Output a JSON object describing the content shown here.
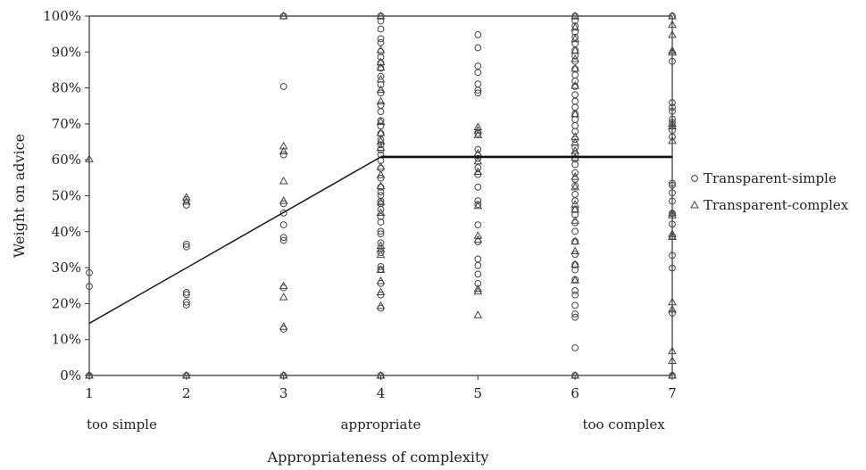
{
  "chart_data": {
    "type": "scatter",
    "title": "",
    "xlabel": "Appropriateness of complexity",
    "ylabel": "Weight on advice",
    "xlim": [
      1,
      7
    ],
    "ylim": [
      0,
      100
    ],
    "x_ticks": [
      "1",
      "2",
      "3",
      "4",
      "5",
      "6",
      "7"
    ],
    "y_ticks": [
      "0%",
      "10%",
      "20%",
      "30%",
      "40%",
      "50%",
      "60%",
      "70%",
      "80%",
      "90%",
      "100%"
    ],
    "x_anchor_labels": [
      {
        "x": 1,
        "text": "too simple"
      },
      {
        "x": 4,
        "text": "appropriate"
      },
      {
        "x": 6.5,
        "text": "too complex"
      }
    ],
    "legend": {
      "position": "right"
    },
    "series": [
      {
        "name": "Transparent-simple",
        "marker": "circle",
        "points": [
          [
            1,
            0
          ],
          [
            1,
            24.8
          ],
          [
            1,
            28.6
          ],
          [
            2,
            0
          ],
          [
            2,
            19.6
          ],
          [
            2,
            20.4
          ],
          [
            2,
            22.5
          ],
          [
            2,
            23.1
          ],
          [
            2,
            35.8
          ],
          [
            2,
            36.5
          ],
          [
            2,
            47.4
          ],
          [
            2,
            48.9
          ],
          [
            3,
            0
          ],
          [
            3,
            12.9
          ],
          [
            3,
            24.4
          ],
          [
            3,
            37.6
          ],
          [
            3,
            38.4
          ],
          [
            3,
            41.9
          ],
          [
            3,
            45.2
          ],
          [
            3,
            47.8
          ],
          [
            3,
            61.4
          ],
          [
            3,
            80.4
          ],
          [
            3,
            100
          ],
          [
            4,
            0
          ],
          [
            4,
            18.7
          ],
          [
            4,
            22.4
          ],
          [
            4,
            25.6
          ],
          [
            4,
            29.5
          ],
          [
            4,
            30.3
          ],
          [
            4,
            34.2
          ],
          [
            4,
            36.9
          ],
          [
            4,
            39.4
          ],
          [
            4,
            40.1
          ],
          [
            4,
            42.7
          ],
          [
            4,
            44.2
          ],
          [
            4,
            46.2
          ],
          [
            4,
            47.8
          ],
          [
            4,
            48.5
          ],
          [
            4,
            50.1
          ],
          [
            4,
            51.1
          ],
          [
            4,
            52.4
          ],
          [
            4,
            54.9
          ],
          [
            4,
            57.6
          ],
          [
            4,
            59.8
          ],
          [
            4,
            61.4
          ],
          [
            4,
            62.8
          ],
          [
            4,
            64.2
          ],
          [
            4,
            65.6
          ],
          [
            4,
            67.3
          ],
          [
            4,
            69.4
          ],
          [
            4,
            70.9
          ],
          [
            4,
            73.4
          ],
          [
            4,
            75.2
          ],
          [
            4,
            78.6
          ],
          [
            4,
            80.9
          ],
          [
            4,
            83.2
          ],
          [
            4,
            85.5
          ],
          [
            4,
            86.9
          ],
          [
            4,
            88.6
          ],
          [
            4,
            90.1
          ],
          [
            4,
            92.6
          ],
          [
            4,
            93.7
          ],
          [
            4,
            96.4
          ],
          [
            4,
            98.6
          ],
          [
            4,
            100
          ],
          [
            5,
            25.6
          ],
          [
            5,
            28.2
          ],
          [
            5,
            30.6
          ],
          [
            5,
            32.4
          ],
          [
            5,
            37.2
          ],
          [
            5,
            41.9
          ],
          [
            5,
            47.6
          ],
          [
            5,
            48.6
          ],
          [
            5,
            52.4
          ],
          [
            5,
            55.9
          ],
          [
            5,
            57.8
          ],
          [
            5,
            60.4
          ],
          [
            5,
            61.2
          ],
          [
            5,
            62.9
          ],
          [
            5,
            67.3
          ],
          [
            5,
            78.6
          ],
          [
            5,
            79.4
          ],
          [
            5,
            81.1
          ],
          [
            5,
            84.3
          ],
          [
            5,
            86.1
          ],
          [
            5,
            91.2
          ],
          [
            5,
            94.8
          ],
          [
            6,
            0
          ],
          [
            6,
            7.7
          ],
          [
            6,
            16.2
          ],
          [
            6,
            17.1
          ],
          [
            6,
            19.5
          ],
          [
            6,
            22.4
          ],
          [
            6,
            23.6
          ],
          [
            6,
            26.7
          ],
          [
            6,
            29.4
          ],
          [
            6,
            30.8
          ],
          [
            6,
            33.7
          ],
          [
            6,
            37.3
          ],
          [
            6,
            40.1
          ],
          [
            6,
            42.5
          ],
          [
            6,
            44.7
          ],
          [
            6,
            46.2
          ],
          [
            6,
            48.6
          ],
          [
            6,
            50.4
          ],
          [
            6,
            52.8
          ],
          [
            6,
            54.6
          ],
          [
            6,
            56.4
          ],
          [
            6,
            58.7
          ],
          [
            6,
            60.2
          ],
          [
            6,
            61.5
          ],
          [
            6,
            63.4
          ],
          [
            6,
            65.7
          ],
          [
            6,
            67.9
          ],
          [
            6,
            69.5
          ],
          [
            6,
            71.2
          ],
          [
            6,
            72.8
          ],
          [
            6,
            74.6
          ],
          [
            6,
            76.3
          ],
          [
            6,
            78.1
          ],
          [
            6,
            80.4
          ],
          [
            6,
            81.9
          ],
          [
            6,
            83.6
          ],
          [
            6,
            85.3
          ],
          [
            6,
            87.4
          ],
          [
            6,
            88.9
          ],
          [
            6,
            90.5
          ],
          [
            6,
            92.3
          ],
          [
            6,
            94.1
          ],
          [
            6,
            95.6
          ],
          [
            6,
            97.2
          ],
          [
            6,
            98.7
          ],
          [
            6,
            100
          ],
          [
            7,
            0
          ],
          [
            7,
            17.3
          ],
          [
            7,
            29.9
          ],
          [
            7,
            33.4
          ],
          [
            7,
            38.7
          ],
          [
            7,
            42.1
          ],
          [
            7,
            45.1
          ],
          [
            7,
            48.5
          ],
          [
            7,
            50.8
          ],
          [
            7,
            52.9
          ],
          [
            7,
            53.5
          ],
          [
            7,
            66.4
          ],
          [
            7,
            68.2
          ],
          [
            7,
            70.4
          ],
          [
            7,
            71.3
          ],
          [
            7,
            73.5
          ],
          [
            7,
            74.6
          ],
          [
            7,
            75.9
          ],
          [
            7,
            87.4
          ],
          [
            7,
            100
          ]
        ]
      },
      {
        "name": "Transparent-complex",
        "marker": "triangle",
        "points": [
          [
            1,
            0
          ],
          [
            1,
            60.2
          ],
          [
            2,
            0
          ],
          [
            2,
            48.4
          ],
          [
            2,
            49.6
          ],
          [
            3,
            0
          ],
          [
            3,
            13.6
          ],
          [
            3,
            21.8
          ],
          [
            3,
            24.9
          ],
          [
            3,
            48.6
          ],
          [
            3,
            54.1
          ],
          [
            3,
            62.4
          ],
          [
            3,
            63.8
          ],
          [
            3,
            100
          ],
          [
            4,
            0
          ],
          [
            4,
            19.4
          ],
          [
            4,
            23.2
          ],
          [
            4,
            26.3
          ],
          [
            4,
            29.4
          ],
          [
            4,
            33.6
          ],
          [
            4,
            35.2
          ],
          [
            4,
            36.1
          ],
          [
            4,
            45.3
          ],
          [
            4,
            48.2
          ],
          [
            4,
            52.7
          ],
          [
            4,
            55.8
          ],
          [
            4,
            58.1
          ],
          [
            4,
            63.4
          ],
          [
            4,
            65.2
          ],
          [
            4,
            67.5
          ],
          [
            4,
            70.6
          ],
          [
            4,
            76.3
          ],
          [
            4,
            79.5
          ],
          [
            4,
            82.4
          ],
          [
            4,
            85.7
          ],
          [
            4,
            87.2
          ],
          [
            4,
            90.6
          ],
          [
            4,
            100
          ],
          [
            5,
            16.8
          ],
          [
            5,
            23.4
          ],
          [
            5,
            24.1
          ],
          [
            5,
            37.8
          ],
          [
            5,
            38.9
          ],
          [
            5,
            47.2
          ],
          [
            5,
            56.7
          ],
          [
            5,
            59.6
          ],
          [
            5,
            61.8
          ],
          [
            5,
            66.9
          ],
          [
            5,
            68.2
          ],
          [
            5,
            69.1
          ],
          [
            6,
            0
          ],
          [
            6,
            26.5
          ],
          [
            6,
            30.9
          ],
          [
            6,
            34.6
          ],
          [
            6,
            37.3
          ],
          [
            6,
            43.1
          ],
          [
            6,
            46.2
          ],
          [
            6,
            47.6
          ],
          [
            6,
            52.4
          ],
          [
            6,
            55.3
          ],
          [
            6,
            60.6
          ],
          [
            6,
            62.5
          ],
          [
            6,
            64.8
          ],
          [
            6,
            66.4
          ],
          [
            6,
            72.7
          ],
          [
            6,
            80.6
          ],
          [
            6,
            85.4
          ],
          [
            6,
            88.1
          ],
          [
            6,
            90.4
          ],
          [
            6,
            93.6
          ],
          [
            6,
            96.8
          ],
          [
            6,
            100
          ],
          [
            7,
            0
          ],
          [
            7,
            4.1
          ],
          [
            7,
            6.8
          ],
          [
            7,
            18.4
          ],
          [
            7,
            20.4
          ],
          [
            7,
            38.6
          ],
          [
            7,
            39.4
          ],
          [
            7,
            44.6
          ],
          [
            7,
            45.2
          ],
          [
            7,
            65.3
          ],
          [
            7,
            69.4
          ],
          [
            7,
            70.1
          ],
          [
            7,
            89.9
          ],
          [
            7,
            90.4
          ],
          [
            7,
            94.8
          ],
          [
            7,
            97.6
          ],
          [
            7,
            100
          ]
        ]
      }
    ],
    "fit_line": {
      "points": [
        [
          1,
          14.5
        ],
        [
          4,
          60.8
        ],
        [
          7,
          60.8
        ]
      ]
    }
  }
}
